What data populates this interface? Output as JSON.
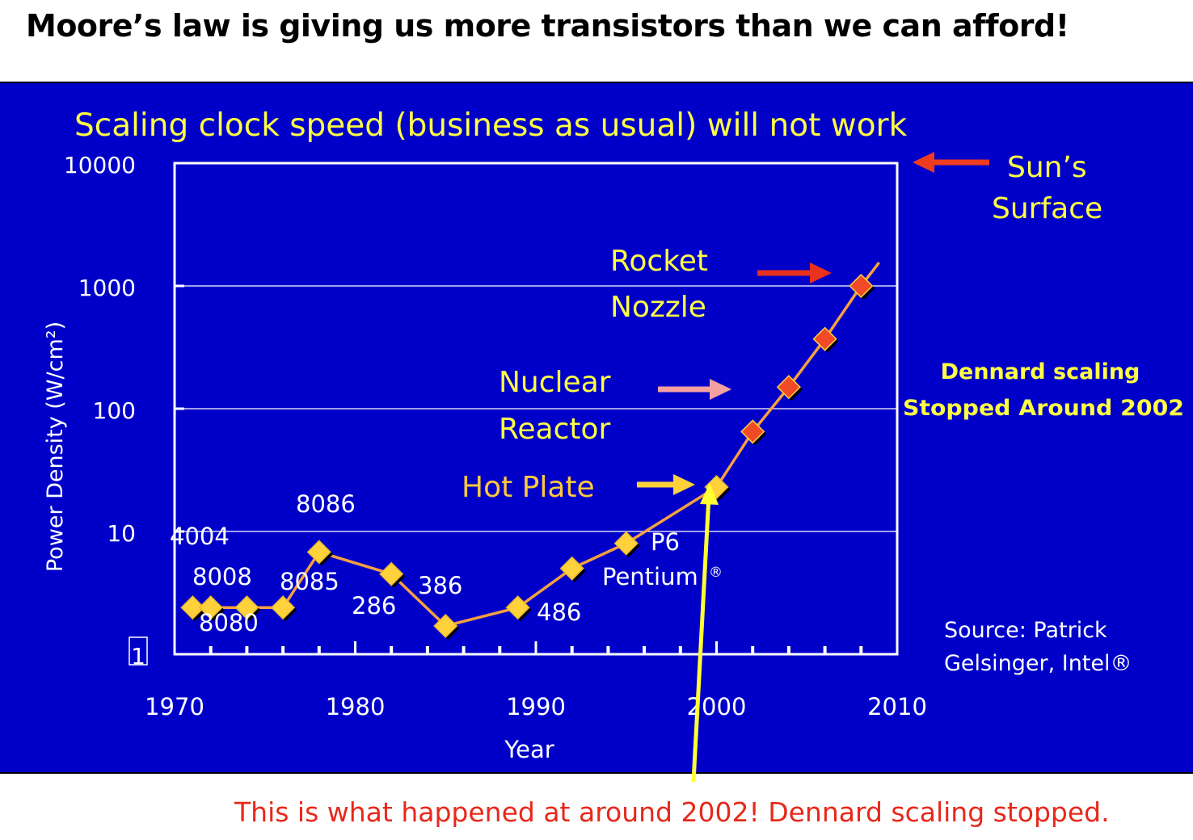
{
  "headline": "Moore’s law is giving us more transistors than we can afford!",
  "caption": "This is what happened at around 2002! Dennard scaling stopped.",
  "colors": {
    "panel": "#0000c8",
    "yellow_text": "#ffff44",
    "orange_text": "#ffc83c",
    "white_text": "#ffffff",
    "caption_red": "#e8281a",
    "line": "#f5a040",
    "marker_yellow": "#ffd23c",
    "marker_red": "#f04a28",
    "arrow_red": "#f03c1e",
    "arrow_pink": "#f4a0a0",
    "arrow_yellow": "#ffd23c",
    "pointer": "#ffff33"
  },
  "chart_data": {
    "type": "line",
    "title": "Scaling clock speed (business as usual) will not work",
    "xlabel": "Year",
    "ylabel": "Power Density (W/cm²)",
    "y_scale": "log",
    "xlim": [
      1970,
      2010
    ],
    "ylim": [
      1,
      10000
    ],
    "x_ticks": [
      1970,
      1980,
      1990,
      2000,
      2010
    ],
    "x_tick_labels": [
      "1970",
      "1980",
      "1990",
      "2000",
      "2010"
    ],
    "y_ticks": [
      1,
      10,
      100,
      1000,
      10000
    ],
    "y_tick_labels": [
      "1",
      "10",
      "100",
      "1000",
      "10000"
    ],
    "grid": true,
    "series": [
      {
        "points": [
          {
            "x": 1971,
            "y": 2.4,
            "label": "4004"
          },
          {
            "x": 1972,
            "y": 2.4,
            "label": "8008"
          },
          {
            "x": 1974,
            "y": 2.4,
            "label": "8080"
          },
          {
            "x": 1976,
            "y": 2.4,
            "label": ""
          },
          {
            "x": 1978,
            "y": 6.8,
            "label": "8085"
          },
          {
            "x": 1978,
            "y": 6.8,
            "label": "8086"
          },
          {
            "x": 1982,
            "y": 4.5,
            "label": "286"
          },
          {
            "x": 1985,
            "y": 1.7,
            "label": "386"
          },
          {
            "x": 1989,
            "y": 2.4,
            "label": "486"
          },
          {
            "x": 1992,
            "y": 5.0,
            "label": ""
          },
          {
            "x": 1995,
            "y": 8.0,
            "label": "P6"
          },
          {
            "x": 2000,
            "y": 23,
            "label": ""
          },
          {
            "x": 2002,
            "y": 65,
            "label": ""
          },
          {
            "x": 2004,
            "y": 150,
            "label": ""
          },
          {
            "x": 2006,
            "y": 370,
            "label": ""
          },
          {
            "x": 2008,
            "y": 1000,
            "label": ""
          }
        ],
        "projected_from_index": 12,
        "line_end": {
          "x": 2009,
          "y": 1550
        }
      }
    ],
    "point_label_text": {
      "p4004": "4004",
      "p8008": "8008",
      "p8080": "8080",
      "p8085": "8085",
      "p8086": "8086",
      "p286": "286",
      "p386": "386",
      "p486": "486",
      "p6": "P6",
      "pentium": "Pentium",
      "pentium_mark": "®"
    },
    "annotations": [
      {
        "text_lines": [
          "Sun’s",
          "Surface"
        ],
        "at_y": 10000,
        "arrow": "red"
      },
      {
        "text_lines": [
          "Rocket",
          "Nozzle"
        ],
        "at_y": 1000,
        "arrow": "red"
      },
      {
        "text_lines": [
          "Nuclear",
          "Reactor"
        ],
        "at_y": 100,
        "arrow": "pink"
      },
      {
        "text_lines": [
          "Hot Plate"
        ],
        "at_y": 23,
        "arrow": "yellow"
      }
    ],
    "note_lines": [
      "Dennard scaling",
      "Stopped Around 2002"
    ],
    "source_lines": [
      "Source: Patrick",
      "Gelsinger, Intel®"
    ]
  }
}
